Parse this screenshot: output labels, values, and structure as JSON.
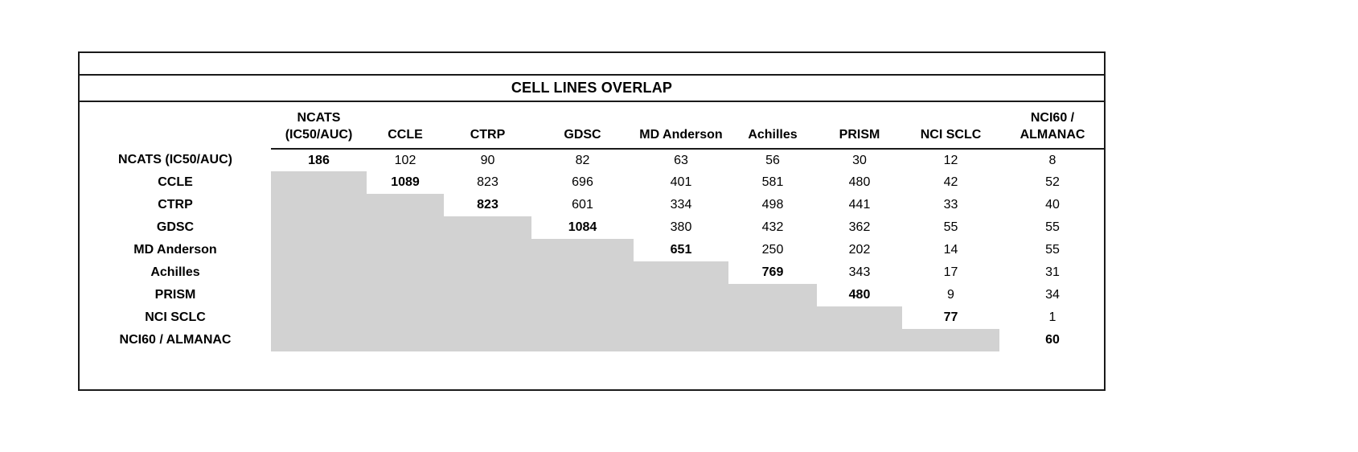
{
  "chart_data": {
    "type": "table",
    "title": "CELL LINES OVERLAP",
    "columns": [
      "NCATS (IC50/AUC)",
      "CCLE",
      "CTRP",
      "GDSC",
      "MD Anderson",
      "Achilles",
      "PRISM",
      "NCI SCLC",
      "NCI60 / ALMANAC"
    ],
    "column_header_lines": [
      [
        "NCATS",
        "(IC50/AUC)"
      ],
      [
        "CCLE"
      ],
      [
        "CTRP"
      ],
      [
        "GDSC"
      ],
      [
        "MD Anderson"
      ],
      [
        "Achilles"
      ],
      [
        "PRISM"
      ],
      [
        "NCI SCLC"
      ],
      [
        "NCI60 /",
        "ALMANAC"
      ]
    ],
    "rows": [
      {
        "label": "NCATS (IC50/AUC)",
        "values": [
          186,
          102,
          90,
          82,
          63,
          56,
          30,
          12,
          8
        ]
      },
      {
        "label": "CCLE",
        "values": [
          null,
          1089,
          823,
          696,
          401,
          581,
          480,
          42,
          52
        ]
      },
      {
        "label": "CTRP",
        "values": [
          null,
          null,
          823,
          601,
          334,
          498,
          441,
          33,
          40
        ]
      },
      {
        "label": "GDSC",
        "values": [
          null,
          null,
          null,
          1084,
          380,
          432,
          362,
          55,
          55
        ]
      },
      {
        "label": "MD Anderson",
        "values": [
          null,
          null,
          null,
          null,
          651,
          250,
          202,
          14,
          55
        ]
      },
      {
        "label": "Achilles",
        "values": [
          null,
          null,
          null,
          null,
          null,
          769,
          343,
          17,
          31
        ]
      },
      {
        "label": "PRISM",
        "values": [
          null,
          null,
          null,
          null,
          null,
          null,
          480,
          9,
          34
        ]
      },
      {
        "label": "NCI SCLC",
        "values": [
          null,
          null,
          null,
          null,
          null,
          null,
          null,
          77,
          1
        ]
      },
      {
        "label": "NCI60 / ALMANAC",
        "values": [
          null,
          null,
          null,
          null,
          null,
          null,
          null,
          null,
          60
        ]
      }
    ],
    "diagonal_bold": true,
    "shaded_lower_triangle": true,
    "shaded_color": "#d2d2d2",
    "layout": {
      "legend": "none",
      "grid": "off"
    }
  }
}
